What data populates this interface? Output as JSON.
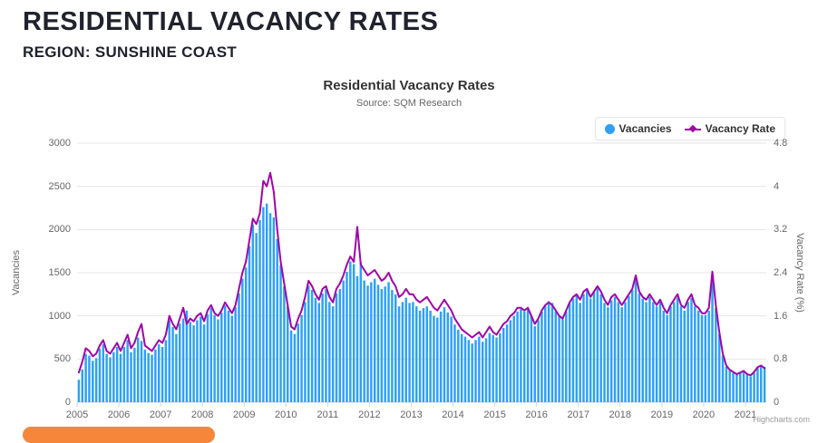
{
  "page": {
    "title": "RESIDENTIAL VACANCY RATES",
    "region": "REGION: SUNSHINE COAST"
  },
  "chart": {
    "title": "Residential Vacancy Rates",
    "subtitle": "Source: SQM Research",
    "credit": "Highcharts.com",
    "legend": [
      {
        "label": "Vacancies",
        "marker": "circle"
      },
      {
        "label": "Vacancy Rate",
        "marker": "line-diamond"
      }
    ],
    "y_left": {
      "label": "Vacancies",
      "ticks": [
        0,
        500,
        1000,
        1500,
        2000,
        2500,
        3000
      ],
      "max": 3000
    },
    "y_right": {
      "label": "Vacancy Rate (%)",
      "ticks": [
        0,
        0.8,
        1.6,
        2.4,
        3.2,
        4,
        4.8
      ],
      "max": 4.8
    },
    "x_tick_labels": [
      "2005",
      "2006",
      "2007",
      "2008",
      "2009",
      "2010",
      "2011",
      "2012",
      "2013",
      "2014",
      "2015",
      "2016",
      "2017",
      "2018",
      "2019",
      "2020",
      "2021"
    ]
  },
  "colors": {
    "bars": "#2da0f8",
    "line": "#a104a8",
    "grid": "#e6e6e6",
    "axis_line": "#ccd6eb",
    "accent_orange": "#f6873a"
  },
  "chart_data": {
    "type": "bar",
    "note_type": "combo column + line, monthly points Jan 2005 - Jun 2021",
    "x_start": "2005-01",
    "x_end": "2021-06",
    "months_per_x_tick": 12,
    "grid": true,
    "legend_position": "top-right",
    "series": [
      {
        "name": "Vacancies",
        "type": "bar",
        "axis": "left",
        "ylim": [
          0,
          3000
        ],
        "values": [
          260,
          380,
          560,
          540,
          480,
          510,
          620,
          670,
          560,
          520,
          580,
          640,
          560,
          640,
          720,
          580,
          630,
          750,
          710,
          610,
          570,
          550,
          610,
          670,
          640,
          720,
          950,
          870,
          790,
          910,
          970,
          1060,
          930,
          890,
          950,
          990,
          900,
          1020,
          1090,
          1010,
          960,
          1040,
          1120,
          1060,
          1000,
          1100,
          1260,
          1430,
          1560,
          1810,
          2060,
          1960,
          2110,
          2260,
          2300,
          2190,
          2140,
          1890,
          1590,
          1340,
          1110,
          830,
          790,
          910,
          1010,
          1160,
          1350,
          1300,
          1210,
          1150,
          1260,
          1310,
          1160,
          1110,
          1260,
          1310,
          1410,
          1510,
          1630,
          1600,
          1460,
          1620,
          1410,
          1350,
          1390,
          1430,
          1360,
          1310,
          1340,
          1390,
          1300,
          1250,
          1110,
          1160,
          1210,
          1150,
          1160,
          1110,
          1060,
          1090,
          1110,
          1060,
          1000,
          980,
          1050,
          1100,
          1040,
          990,
          900,
          840,
          790,
          760,
          720,
          680,
          720,
          760,
          700,
          740,
          800,
          780,
          750,
          800,
          860,
          900,
          950,
          1000,
          1050,
          1080,
          1050,
          1080,
          1000,
          880,
          950,
          1050,
          1120,
          1170,
          1150,
          1050,
          1000,
          960,
          1050,
          1150,
          1200,
          1240,
          1150,
          1250,
          1300,
          1200,
          1280,
          1320,
          1250,
          1150,
          1100,
          1180,
          1220,
          1160,
          1100,
          1160,
          1230,
          1300,
          1420,
          1260,
          1200,
          1160,
          1220,
          1160,
          1110,
          1160,
          1060,
          1010,
          1110,
          1160,
          1210,
          1110,
          1060,
          1160,
          1210,
          1110,
          1060,
          1010,
          1010,
          1060,
          1480,
          1090,
          790,
          540,
          410,
          370,
          340,
          320,
          340,
          360,
          320,
          300,
          340,
          400,
          430,
          410
        ]
      },
      {
        "name": "Vacancy Rate",
        "type": "line",
        "axis": "right",
        "ylim": [
          0,
          4.8
        ],
        "values": [
          0.55,
          0.75,
          1.0,
          0.95,
          0.85,
          0.9,
          1.05,
          1.15,
          0.95,
          0.9,
          1.0,
          1.1,
          0.95,
          1.1,
          1.25,
          1.0,
          1.1,
          1.3,
          1.45,
          1.05,
          1.0,
          0.95,
          1.05,
          1.15,
          1.1,
          1.25,
          1.6,
          1.45,
          1.35,
          1.55,
          1.75,
          1.45,
          1.55,
          1.5,
          1.6,
          1.65,
          1.5,
          1.7,
          1.8,
          1.65,
          1.6,
          1.7,
          1.85,
          1.75,
          1.65,
          1.8,
          2.1,
          2.4,
          2.6,
          3.0,
          3.4,
          3.3,
          3.5,
          4.1,
          4.0,
          4.25,
          3.9,
          3.2,
          2.6,
          2.2,
          1.8,
          1.4,
          1.35,
          1.55,
          1.7,
          1.95,
          2.25,
          2.15,
          2.0,
          1.9,
          2.1,
          2.15,
          1.95,
          1.85,
          2.1,
          2.2,
          2.35,
          2.55,
          2.7,
          2.6,
          3.25,
          2.55,
          2.45,
          2.35,
          2.4,
          2.45,
          2.35,
          2.25,
          2.3,
          2.4,
          2.25,
          2.15,
          1.95,
          2.0,
          2.1,
          2.0,
          2.0,
          1.9,
          1.85,
          1.9,
          1.95,
          1.85,
          1.75,
          1.7,
          1.8,
          1.9,
          1.8,
          1.7,
          1.55,
          1.45,
          1.35,
          1.3,
          1.25,
          1.2,
          1.25,
          1.3,
          1.2,
          1.3,
          1.4,
          1.3,
          1.25,
          1.35,
          1.45,
          1.5,
          1.6,
          1.65,
          1.75,
          1.75,
          1.7,
          1.75,
          1.6,
          1.45,
          1.55,
          1.7,
          1.8,
          1.85,
          1.8,
          1.7,
          1.6,
          1.55,
          1.7,
          1.85,
          1.95,
          2.0,
          1.9,
          2.05,
          2.1,
          1.95,
          2.05,
          2.15,
          2.05,
          1.9,
          1.8,
          1.95,
          2.0,
          1.9,
          1.8,
          1.9,
          2.0,
          2.1,
          2.35,
          2.05,
          1.95,
          1.9,
          2.0,
          1.9,
          1.8,
          1.9,
          1.75,
          1.65,
          1.8,
          1.9,
          2.0,
          1.8,
          1.75,
          1.9,
          2.0,
          1.8,
          1.75,
          1.65,
          1.65,
          1.75,
          2.42,
          1.8,
          1.3,
          0.9,
          0.68,
          0.6,
          0.56,
          0.52,
          0.55,
          0.58,
          0.52,
          0.5,
          0.56,
          0.65,
          0.68,
          0.63
        ]
      }
    ],
    "title": "Residential Vacancy Rates",
    "xlabel": "",
    "ylabel_left": "Vacancies",
    "ylabel_right": "Vacancy Rate (%)"
  }
}
